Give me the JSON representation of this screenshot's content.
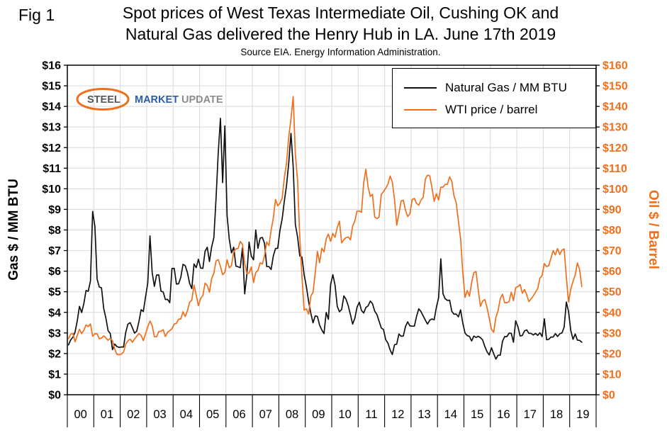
{
  "header": {
    "fig_label": "Fig 1",
    "title_line1": "Spot prices of West Texas Intermediate Oil, Cushing OK and",
    "title_line2": "Natural Gas delivered the Henry Hub in LA. June 17th 2019",
    "subtitle": "Source EIA. Energy Information Administration."
  },
  "logo": {
    "part1": "STEEL",
    "part2": "MARKET",
    "part3": "UPDATE"
  },
  "colors": {
    "oil_orange": "#ef6f1c",
    "gas_black": "#111111",
    "grid_gray": "#d9d9d9"
  },
  "chart_data": {
    "type": "line",
    "title": "Spot prices of West Texas Intermediate Oil, Cushing OK and Natural Gas delivered the Henry Hub in LA. June 17th 2019",
    "subtitle": "Source EIA. Energy Information Administration.",
    "frequency": "monthly",
    "x_start": "2000-01",
    "x_end": "2019-06",
    "grid": true,
    "legend_position": "top-right-inside",
    "x_tick_labels": [
      "00",
      "01",
      "02",
      "03",
      "04",
      "05",
      "06",
      "07",
      "08",
      "09",
      "10",
      "11",
      "12",
      "13",
      "14",
      "15",
      "16",
      "17",
      "18",
      "19"
    ],
    "left_axis": {
      "label": "Gas $ / MM BTU",
      "min": 0,
      "max": 16,
      "step": 1,
      "tick_prefix": "$",
      "color": "#000000"
    },
    "right_axis": {
      "label": "Oil $ / Barrel",
      "min": 0,
      "max": 160,
      "step": 10,
      "tick_prefix": "$",
      "color": "#ef6f1c"
    },
    "legend": [
      {
        "label": "Natural Gas / MM BTU",
        "color": "#111111"
      },
      {
        "label": "WTI price / barrel",
        "color": "#ef6f1c"
      }
    ],
    "series": [
      {
        "name": "Natural Gas / MM BTU",
        "axis": "left",
        "color": "#111111",
        "values": [
          2.42,
          2.66,
          2.79,
          3.04,
          3.59,
          4.29,
          3.99,
          4.43,
          5.06,
          5.02,
          5.52,
          8.9,
          8.17,
          5.61,
          5.23,
          5.19,
          4.19,
          3.72,
          3.11,
          2.97,
          2.19,
          2.46,
          2.34,
          2.3,
          2.32,
          2.32,
          3.03,
          3.43,
          3.5,
          3.26,
          2.99,
          3.09,
          3.55,
          4.13,
          4.04,
          4.74,
          5.43,
          7.71,
          5.93,
          5.26,
          5.81,
          5.82,
          5.03,
          4.99,
          4.62,
          4.63,
          4.47,
          6.13,
          6.14,
          5.37,
          5.39,
          5.71,
          6.33,
          6.27,
          5.93,
          5.41,
          5.15,
          6.35,
          6.17,
          6.58,
          6.15,
          6.14,
          6.96,
          7.16,
          6.47,
          7.18,
          7.63,
          9.53,
          11.75,
          13.42,
          10.3,
          13.05,
          8.69,
          7.54,
          6.89,
          7.16,
          6.25,
          6.21,
          6.17,
          7.14,
          4.9,
          5.85,
          7.41,
          6.73,
          6.55,
          8.0,
          7.11,
          7.6,
          7.64,
          7.35,
          6.22,
          6.22,
          6.08,
          6.74,
          7.1,
          7.11,
          7.99,
          8.54,
          9.41,
          10.18,
          11.27,
          12.69,
          11.09,
          8.26,
          7.67,
          6.74,
          6.68,
          5.82,
          5.24,
          4.52,
          3.96,
          3.49,
          3.83,
          3.8,
          3.38,
          3.14,
          2.97,
          4.0,
          3.66,
          5.34,
          5.83,
          5.32,
          4.29,
          4.03,
          4.14,
          4.8,
          4.63,
          4.32,
          3.89,
          3.43,
          3.71,
          4.25,
          4.49,
          4.09,
          3.97,
          4.24,
          4.31,
          4.55,
          4.42,
          4.06,
          3.9,
          3.57,
          3.24,
          3.17,
          2.67,
          2.51,
          2.17,
          1.95,
          2.43,
          2.46,
          2.95,
          2.84,
          2.85,
          3.32,
          3.54,
          3.34,
          3.33,
          3.33,
          3.81,
          4.17,
          4.04,
          3.83,
          3.62,
          3.43,
          3.62,
          3.68,
          3.64,
          4.24,
          4.71,
          6.6,
          4.9,
          4.66,
          4.58,
          4.59,
          4.05,
          3.91,
          3.92,
          3.78,
          4.12,
          3.48,
          2.99,
          2.87,
          2.83,
          2.61,
          2.85,
          2.78,
          2.84,
          2.77,
          2.66,
          2.34,
          2.09,
          1.93,
          2.28,
          1.99,
          1.73,
          1.92,
          1.92,
          2.59,
          2.82,
          2.82,
          2.99,
          2.98,
          2.55,
          3.59,
          3.3,
          2.85,
          2.88,
          3.1,
          3.15,
          2.98,
          2.98,
          2.9,
          2.98,
          2.88,
          3.01,
          2.82,
          3.69,
          2.67,
          2.69,
          2.8,
          2.8,
          2.97,
          2.83,
          2.96,
          3.0,
          3.28,
          4.5,
          4.04,
          3.11,
          2.69,
          2.95,
          2.65,
          2.64,
          2.55
        ]
      },
      {
        "name": "WTI price / barrel",
        "axis": "right",
        "color": "#ef6f1c",
        "values": [
          27.3,
          29.4,
          29.8,
          25.7,
          28.8,
          31.8,
          29.7,
          31.3,
          33.9,
          33.1,
          34.4,
          28.4,
          29.6,
          29.6,
          27.2,
          27.5,
          28.6,
          27.6,
          26.4,
          27.4,
          26.2,
          22.2,
          19.6,
          19.4,
          19.7,
          20.7,
          24.5,
          26.2,
          27.0,
          25.5,
          27.0,
          28.4,
          29.7,
          28.8,
          26.3,
          29.5,
          33.0,
          35.8,
          33.5,
          28.2,
          28.1,
          30.7,
          30.8,
          31.6,
          28.3,
          30.3,
          31.1,
          32.1,
          34.3,
          34.7,
          36.7,
          36.8,
          40.3,
          38.0,
          40.8,
          44.9,
          45.9,
          53.3,
          48.5,
          43.2,
          46.8,
          48.2,
          54.2,
          53.0,
          49.8,
          56.4,
          59.0,
          65.0,
          65.6,
          62.3,
          58.3,
          59.4,
          65.5,
          61.6,
          62.7,
          69.4,
          70.8,
          71.0,
          74.4,
          73.0,
          63.8,
          58.9,
          59.1,
          62.0,
          54.5,
          59.3,
          60.4,
          64.0,
          63.5,
          67.5,
          74.1,
          72.4,
          79.9,
          85.8,
          94.8,
          91.7,
          93.0,
          95.4,
          105.5,
          112.6,
          125.4,
          133.9,
          144.8,
          116.7,
          104.1,
          76.6,
          57.3,
          41.1,
          41.7,
          39.1,
          47.9,
          49.7,
          59.0,
          69.6,
          64.1,
          71.1,
          69.4,
          75.7,
          78.0,
          74.5,
          78.3,
          76.4,
          81.2,
          84.3,
          73.7,
          75.3,
          76.3,
          76.6,
          75.2,
          81.9,
          84.3,
          89.2,
          89.2,
          88.6,
          102.9,
          109.5,
          100.9,
          96.3,
          97.3,
          86.3,
          85.5,
          86.3,
          97.2,
          98.6,
          100.3,
          102.2,
          106.2,
          103.3,
          94.7,
          82.3,
          87.9,
          94.1,
          94.5,
          89.5,
          86.5,
          87.9,
          94.8,
          95.3,
          92.9,
          92.0,
          94.5,
          95.8,
          104.7,
          106.6,
          106.3,
          100.5,
          93.9,
          97.6,
          94.6,
          100.8,
          100.8,
          102.1,
          102.2,
          105.8,
          103.6,
          96.5,
          93.2,
          84.4,
          75.8,
          59.3,
          47.2,
          50.6,
          47.8,
          54.5,
          59.3,
          59.8,
          50.9,
          42.9,
          45.5,
          46.2,
          42.4,
          37.2,
          31.7,
          30.3,
          37.6,
          40.8,
          46.7,
          48.8,
          44.7,
          44.7,
          45.2,
          49.8,
          45.7,
          52.0,
          52.5,
          53.5,
          49.3,
          51.1,
          48.5,
          45.2,
          46.6,
          48.0,
          49.8,
          51.6,
          56.6,
          57.9,
          63.7,
          62.2,
          62.7,
          66.3,
          70.0,
          67.9,
          71.0,
          68.1,
          70.2,
          70.8,
          57.0,
          45.0,
          51.4,
          55.0,
          58.2,
          64.0,
          60.8,
          52.5
        ]
      }
    ]
  }
}
